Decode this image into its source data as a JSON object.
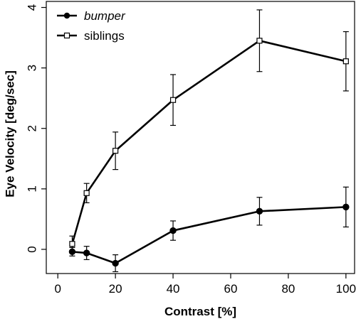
{
  "chart_data": {
    "type": "line",
    "title": "",
    "xlabel": "Contrast [%]",
    "ylabel": "Eye Velocity [deg/sec]",
    "xlim": [
      -4,
      103
    ],
    "ylim": [
      -0.4,
      4.1
    ],
    "xticks": [
      0,
      20,
      40,
      60,
      80,
      100
    ],
    "yticks": [
      0,
      1,
      2,
      3,
      4
    ],
    "grid": false,
    "legend_position": "top-left",
    "series": [
      {
        "name": "bumper",
        "name_style": "italic",
        "marker": "filled-circle",
        "color": "#000000",
        "x": [
          5,
          10,
          20,
          40,
          70,
          100
        ],
        "y": [
          -0.04,
          -0.06,
          -0.23,
          0.31,
          0.63,
          0.7
        ],
        "err": [
          0.07,
          0.11,
          0.14,
          0.16,
          0.23,
          0.33
        ]
      },
      {
        "name": "siblings",
        "name_style": "normal",
        "marker": "open-square",
        "color": "#000000",
        "x": [
          5,
          10,
          20,
          40,
          70,
          100
        ],
        "y": [
          0.09,
          0.93,
          1.63,
          2.47,
          3.45,
          3.11
        ],
        "err": [
          0.13,
          0.16,
          0.31,
          0.42,
          0.51,
          0.49
        ]
      }
    ]
  }
}
